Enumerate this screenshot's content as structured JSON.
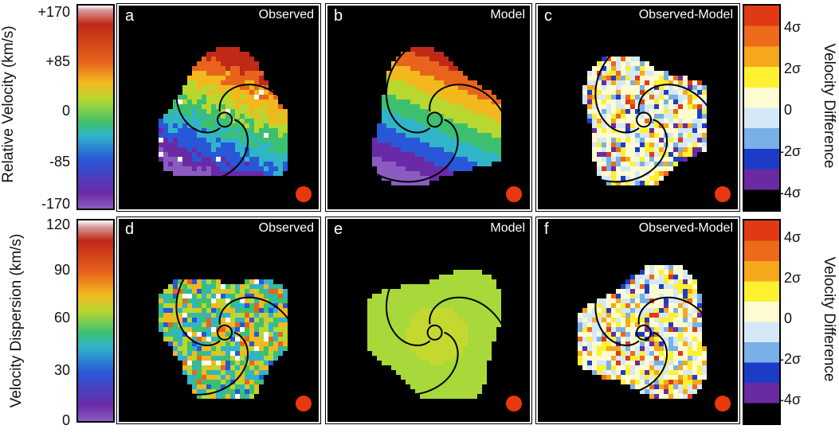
{
  "axes": {
    "velocity_label": "Relative Velocity (km/s)",
    "velocity_ticks": [
      "+170",
      "+85",
      "0",
      "-85",
      "-170"
    ],
    "dispersion_label": "Velocity Dispersion (km/s)",
    "dispersion_ticks": [
      "120",
      "90",
      "60",
      "30",
      "0"
    ],
    "difference_label": "Velocity Difference",
    "difference_ticks": [
      "4σ",
      "2σ",
      "0",
      "-2σ",
      "-4σ"
    ]
  },
  "panels": {
    "a": {
      "letter": "a",
      "title": "Observed"
    },
    "b": {
      "letter": "b",
      "title": "Model"
    },
    "c": {
      "letter": "c",
      "title": "Observed-Model"
    },
    "d": {
      "letter": "d",
      "title": "Observed"
    },
    "e": {
      "letter": "e",
      "title": "Model"
    },
    "f": {
      "letter": "f",
      "title": "Observed-Model"
    }
  },
  "colors": {
    "beam": "#e8380d",
    "rainbow": [
      "#ffffff",
      "#c02818",
      "#e8641c",
      "#f2b81e",
      "#b8d830",
      "#3cc070",
      "#30b4c8",
      "#2858d8",
      "#6a2aa8",
      "#8a5cc0"
    ],
    "difference": [
      "#e03a14",
      "#ec6a1a",
      "#f6a81c",
      "#fff030",
      "#fffbd0",
      "#d4e8f8",
      "#7ab0e8",
      "#1c3cc8",
      "#6a2aa0",
      "#000000"
    ]
  }
}
